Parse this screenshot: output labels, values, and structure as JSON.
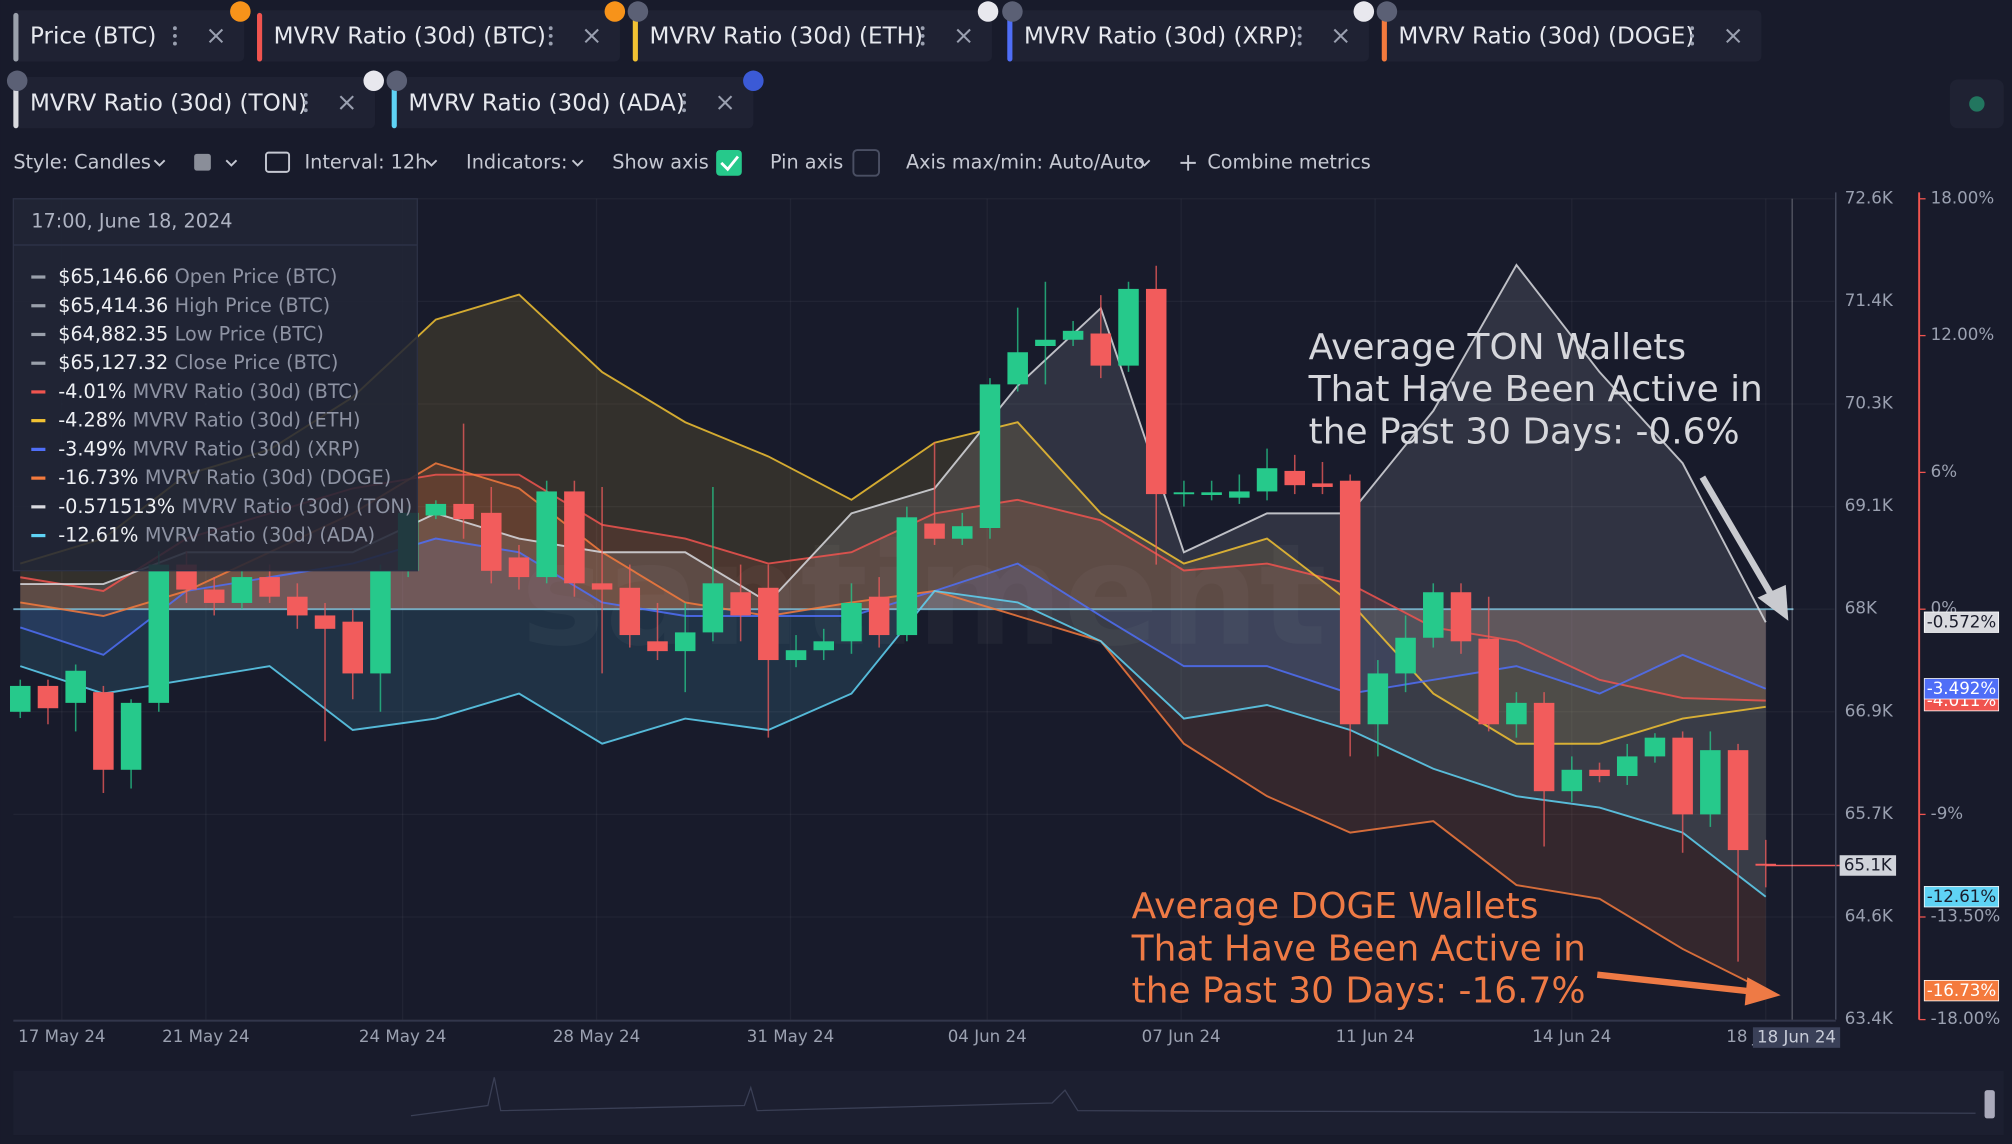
{
  "toolbar": [
    "Style: Candles",
    "Interval: 12h",
    "Indicators:",
    "Show axis",
    "Pin axis",
    "Axis max/min: Auto/Auto",
    "Combine metrics"
  ],
  "watermark": "santiment",
  "tooltip": {
    "date": "17:00, June 18, 2024",
    "ohlc": [
      {
        "label": "$65,146.66",
        "name": "Open Price (BTC)"
      },
      {
        "label": "$65,414.36",
        "name": "High Price (BTC)"
      },
      {
        "label": "$64,882.35",
        "name": "Low Price (BTC)"
      },
      {
        "label": "$65,127.32",
        "name": "Close Price (BTC)"
      }
    ]
  },
  "annotations": [
    {
      "lines": [
        "Average TON Wallets",
        "That Have Been Active in",
        "the Past 30 Days: -0.6%"
      ],
      "color": "#d6d7dc"
    },
    {
      "lines": [
        "Average DOGE Wallets",
        "That Have Been Active in",
        "the Past 30 Days: -16.7%"
      ],
      "color": "#ee7a45"
    }
  ],
  "chart_data": {
    "type": "candlestick",
    "name": "Price (BTC)",
    "color": "#9aa0ab",
    "up_color": "#26c98b",
    "down_color": "#f25c5c",
    "grid": true,
    "x": [
      0,
      1,
      2,
      3,
      4,
      5,
      6,
      7,
      8,
      9,
      10,
      11,
      12,
      13,
      14,
      15,
      16,
      17,
      18,
      19,
      20,
      21,
      22,
      23,
      24,
      25,
      26,
      27,
      28,
      29,
      30,
      31,
      32,
      33,
      34,
      35,
      36,
      37,
      38,
      39,
      40,
      41,
      42,
      43,
      44,
      45,
      46,
      47,
      48,
      49,
      50,
      51,
      52,
      53,
      54,
      55,
      56,
      57,
      58,
      59,
      60,
      61,
      62,
      63
    ],
    "open": [
      66850,
      67140,
      66950,
      67070,
      66200,
      66950,
      68500,
      68220,
      68070,
      68360,
      68140,
      67930,
      67860,
      67280,
      68430,
      69050,
      69180,
      69080,
      68580,
      68360,
      69320,
      68290,
      68240,
      67640,
      67530,
      67740,
      68190,
      68240,
      67430,
      67540,
      67640,
      68140,
      67710,
      68960,
      68790,
      68910,
      70520,
      70950,
      71020,
      71090,
      70730,
      71590,
      69290,
      69280,
      69250,
      69320,
      69550,
      69410,
      69440,
      66710,
      67280,
      67680,
      68190,
      67670,
      66710,
      66950,
      65960,
      66200,
      66130,
      66350,
      66560,
      65700,
      66420,
      65146.66
    ],
    "high": [
      67210,
      67210,
      67380,
      67140,
      66990,
      68650,
      68650,
      68360,
      68430,
      68500,
      68290,
      68070,
      68000,
      68500,
      69150,
      69220,
      70080,
      69370,
      68720,
      69440,
      69440,
      69370,
      68500,
      68070,
      68070,
      69370,
      68500,
      68500,
      67710,
      67780,
      68290,
      68360,
      69150,
      69870,
      69080,
      70590,
      71380,
      71670,
      71230,
      71520,
      71670,
      71850,
      69440,
      69440,
      69510,
      69800,
      69730,
      69650,
      69510,
      67430,
      67930,
      68290,
      68290,
      68140,
      67070,
      67070,
      66350,
      66280,
      66490,
      66610,
      66630,
      66630,
      66490,
      65414.36
    ],
    "low": [
      66780,
      66710,
      66630,
      65940,
      65990,
      66850,
      68070,
      67930,
      68000,
      68070,
      67780,
      66520,
      66990,
      66850,
      68360,
      69010,
      68790,
      68290,
      68220,
      68290,
      68140,
      67280,
      67570,
      67430,
      67070,
      67640,
      67640,
      66560,
      67350,
      67430,
      67500,
      67570,
      67640,
      68720,
      68720,
      68790,
      70440,
      70520,
      70950,
      70590,
      70660,
      68500,
      69150,
      69220,
      69180,
      69220,
      69290,
      69290,
      66350,
      66350,
      67070,
      67570,
      67500,
      66630,
      66560,
      65340,
      65840,
      66060,
      66030,
      66280,
      65270,
      65560,
      64050,
      64882.35
    ],
    "close": [
      67140,
      66890,
      67310,
      66200,
      66950,
      68500,
      68220,
      68070,
      68360,
      68140,
      67930,
      67780,
      67280,
      68430,
      69080,
      69180,
      69010,
      68430,
      68360,
      69320,
      68290,
      68220,
      67710,
      67530,
      67740,
      68290,
      67930,
      67430,
      67540,
      67640,
      68070,
      67710,
      69030,
      68790,
      68930,
      70520,
      70880,
      71020,
      71120,
      70730,
      71590,
      69290,
      69310,
      69310,
      69320,
      69580,
      69390,
      69370,
      66710,
      67280,
      67680,
      68190,
      67640,
      66710,
      66950,
      65960,
      66200,
      66130,
      66350,
      66560,
      65700,
      66420,
      65300,
      65127.32
    ],
    "price_label": "65.1K",
    "crosshair_label": "18 Jun 24",
    "xlim": [
      -0.25,
      64
    ],
    "xticks": [
      {
        "value": 1.5,
        "label": "17 May 24"
      },
      {
        "value": 6.7,
        "label": "21 May 24"
      },
      {
        "value": 13.8,
        "label": "24 May 24"
      },
      {
        "value": 20.8,
        "label": "28 May 24"
      },
      {
        "value": 27.8,
        "label": "31 May 24"
      },
      {
        "value": 34.9,
        "label": "04 Jun 24"
      },
      {
        "value": 41.9,
        "label": "07 Jun 24"
      },
      {
        "value": 48.9,
        "label": "11 Jun 24"
      },
      {
        "value": 56,
        "label": "14 Jun 24"
      },
      {
        "value": 63,
        "label": "18 Jun 24"
      }
    ],
    "ylim": [
      63400,
      72600
    ],
    "yticks": [
      {
        "value": 72600,
        "label": "72.6K"
      },
      {
        "value": 71450,
        "label": "71.4K"
      },
      {
        "value": 70300,
        "label": "70.3K"
      },
      {
        "value": 69150,
        "label": "69.1K"
      },
      {
        "value": 68000,
        "label": "68K"
      },
      {
        "value": 66850,
        "label": "66.9K"
      },
      {
        "value": 65700,
        "label": "65.7K"
      },
      {
        "value": 64550,
        "label": "64.6K"
      },
      {
        "value": 63400,
        "label": "63.4K"
      }
    ],
    "y2lim": [
      -18,
      18
    ],
    "y2ticks": [
      {
        "value": 18,
        "label": "18.00%"
      },
      {
        "value": 12,
        "label": "12.00%"
      },
      {
        "value": 6,
        "label": "6%"
      },
      {
        "value": 0,
        "label": "0%"
      },
      {
        "value": -9,
        "label": "-9%"
      },
      {
        "value": -13.5,
        "label": "-13.50%"
      },
      {
        "value": -18,
        "label": "-18.00%"
      }
    ],
    "series": [
      {
        "name": "MVRV Ratio (30d) (BTC)",
        "color": "#f0544f",
        "axis": "y2",
        "x": [
          0,
          3,
          6,
          9,
          12,
          15,
          18,
          21,
          24,
          27,
          30,
          33,
          36,
          39,
          42,
          45,
          48,
          51,
          54,
          57,
          60,
          63
        ],
        "values": [
          1.4,
          0.8,
          3.1,
          4.2,
          5.3,
          5.9,
          5.9,
          3.7,
          3.1,
          2.0,
          2.5,
          4.2,
          4.8,
          3.9,
          1.7,
          2.0,
          1.1,
          -0.8,
          -1.4,
          -3.1,
          -3.9,
          -4.01
        ],
        "tooltip_label": "-4.01%",
        "end_label": "-4.011%"
      },
      {
        "name": "MVRV Ratio (30d) (ETH)",
        "color": "#f2c233",
        "axis": "y2",
        "x": [
          0,
          3,
          6,
          9,
          12,
          15,
          18,
          21,
          24,
          27,
          30,
          33,
          36,
          39,
          42,
          45,
          48,
          51,
          54,
          57,
          60,
          63
        ],
        "values": [
          2.0,
          3.1,
          5.9,
          7.0,
          9.3,
          12.7,
          13.8,
          10.4,
          8.2,
          6.7,
          4.8,
          7.3,
          8.2,
          4.2,
          2.0,
          3.1,
          0.3,
          -3.7,
          -5.9,
          -5.9,
          -4.8,
          -4.28
        ],
        "tooltip_label": "-4.28%"
      },
      {
        "name": "MVRV Ratio (30d) (XRP)",
        "color": "#4f6ef7",
        "axis": "y2",
        "x": [
          0,
          3,
          6,
          9,
          12,
          15,
          18,
          21,
          24,
          27,
          30,
          33,
          36,
          39,
          42,
          45,
          48,
          51,
          54,
          57,
          60,
          63
        ],
        "values": [
          -0.8,
          -2.0,
          0.8,
          1.4,
          2.0,
          3.1,
          2.5,
          0.3,
          -0.3,
          -0.3,
          -0.3,
          0.8,
          2.0,
          -0.3,
          -2.5,
          -2.5,
          -3.7,
          -3.1,
          -2.5,
          -3.7,
          -2.0,
          -3.49
        ],
        "tooltip_label": "-3.49%",
        "end_label": "-3.492%"
      },
      {
        "name": "MVRV Ratio (30d) (DOGE)",
        "color": "#f47a3d",
        "axis": "y2",
        "x": [
          0,
          3,
          6,
          9,
          12,
          15,
          18,
          21,
          24,
          27,
          30,
          33,
          36,
          39,
          42,
          45,
          48,
          51,
          54,
          57,
          60,
          63
        ],
        "values": [
          0.3,
          -0.3,
          0.8,
          2.5,
          4.2,
          6.4,
          5.3,
          2.5,
          0.3,
          -0.3,
          0.3,
          0.8,
          -0.3,
          -1.4,
          -5.9,
          -8.2,
          -9.8,
          -9.3,
          -12.1,
          -12.7,
          -14.9,
          -16.73
        ],
        "tooltip_label": "-16.73%",
        "end_label": "-16.73%"
      },
      {
        "name": "MVRV Ratio (30d) (TON)",
        "color": "#d9dadf",
        "axis": "y2",
        "x": [
          0,
          3,
          6,
          9,
          12,
          15,
          18,
          21,
          24,
          27,
          30,
          33,
          36,
          39,
          42,
          45,
          48,
          51,
          54,
          57,
          60,
          63
        ],
        "values": [
          1.1,
          1.1,
          2.5,
          2.5,
          2.5,
          4.2,
          3.1,
          2.5,
          2.5,
          0.3,
          4.2,
          5.3,
          9.8,
          13.2,
          2.5,
          4.2,
          4.2,
          8.7,
          15.1,
          10.4,
          6.4,
          -0.571513
        ],
        "tooltip_label": "-0.571513%",
        "end_label": "-0.572%"
      },
      {
        "name": "MVRV Ratio (30d) (ADA)",
        "color": "#5fd3f5",
        "axis": "y2",
        "x": [
          0,
          3,
          6,
          9,
          12,
          15,
          18,
          21,
          24,
          27,
          30,
          33,
          36,
          39,
          42,
          45,
          48,
          51,
          54,
          57,
          60,
          63
        ],
        "values": [
          -2.5,
          -3.7,
          -3.1,
          -2.5,
          -5.3,
          -4.8,
          -3.7,
          -5.9,
          -4.8,
          -5.3,
          -3.7,
          0.8,
          0.3,
          -1.4,
          -4.8,
          -4.2,
          -5.3,
          -7.0,
          -8.2,
          -8.7,
          -9.8,
          -12.61
        ],
        "tooltip_label": "-12.61%",
        "end_label": "-12.61%"
      }
    ]
  }
}
